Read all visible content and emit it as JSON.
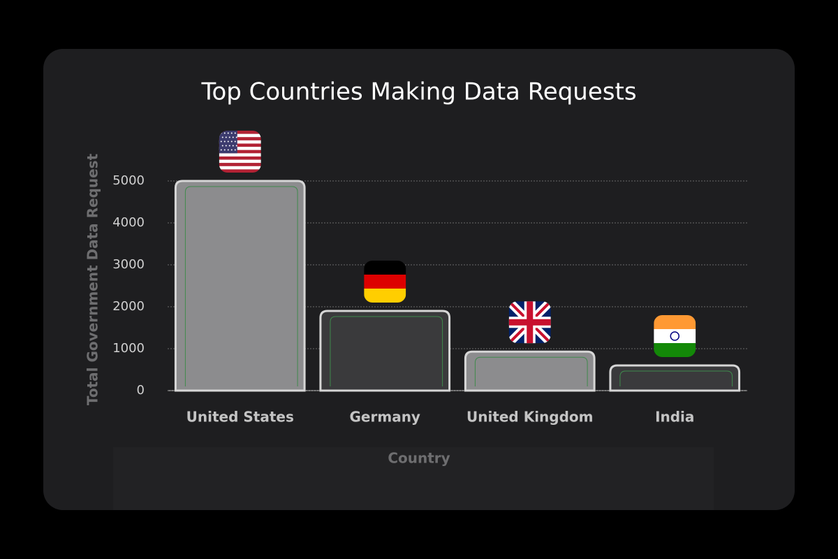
{
  "chart_data": {
    "type": "bar",
    "title": "Top Countries Making Data Requests",
    "x_label": "Country",
    "y_label": "Total Government Data Request",
    "categories": [
      "United States",
      "Germany",
      "United Kingdom",
      "India"
    ],
    "values": [
      5000,
      1900,
      930,
      600
    ],
    "colors": [
      "#8c8c8e",
      "#3a3a3c",
      "#8c8c8e",
      "#3a3a3c"
    ],
    "ylim": [
      0,
      5000
    ],
    "yticks": [
      0,
      1000,
      2000,
      3000,
      4000,
      5000
    ],
    "grid": true
  }
}
